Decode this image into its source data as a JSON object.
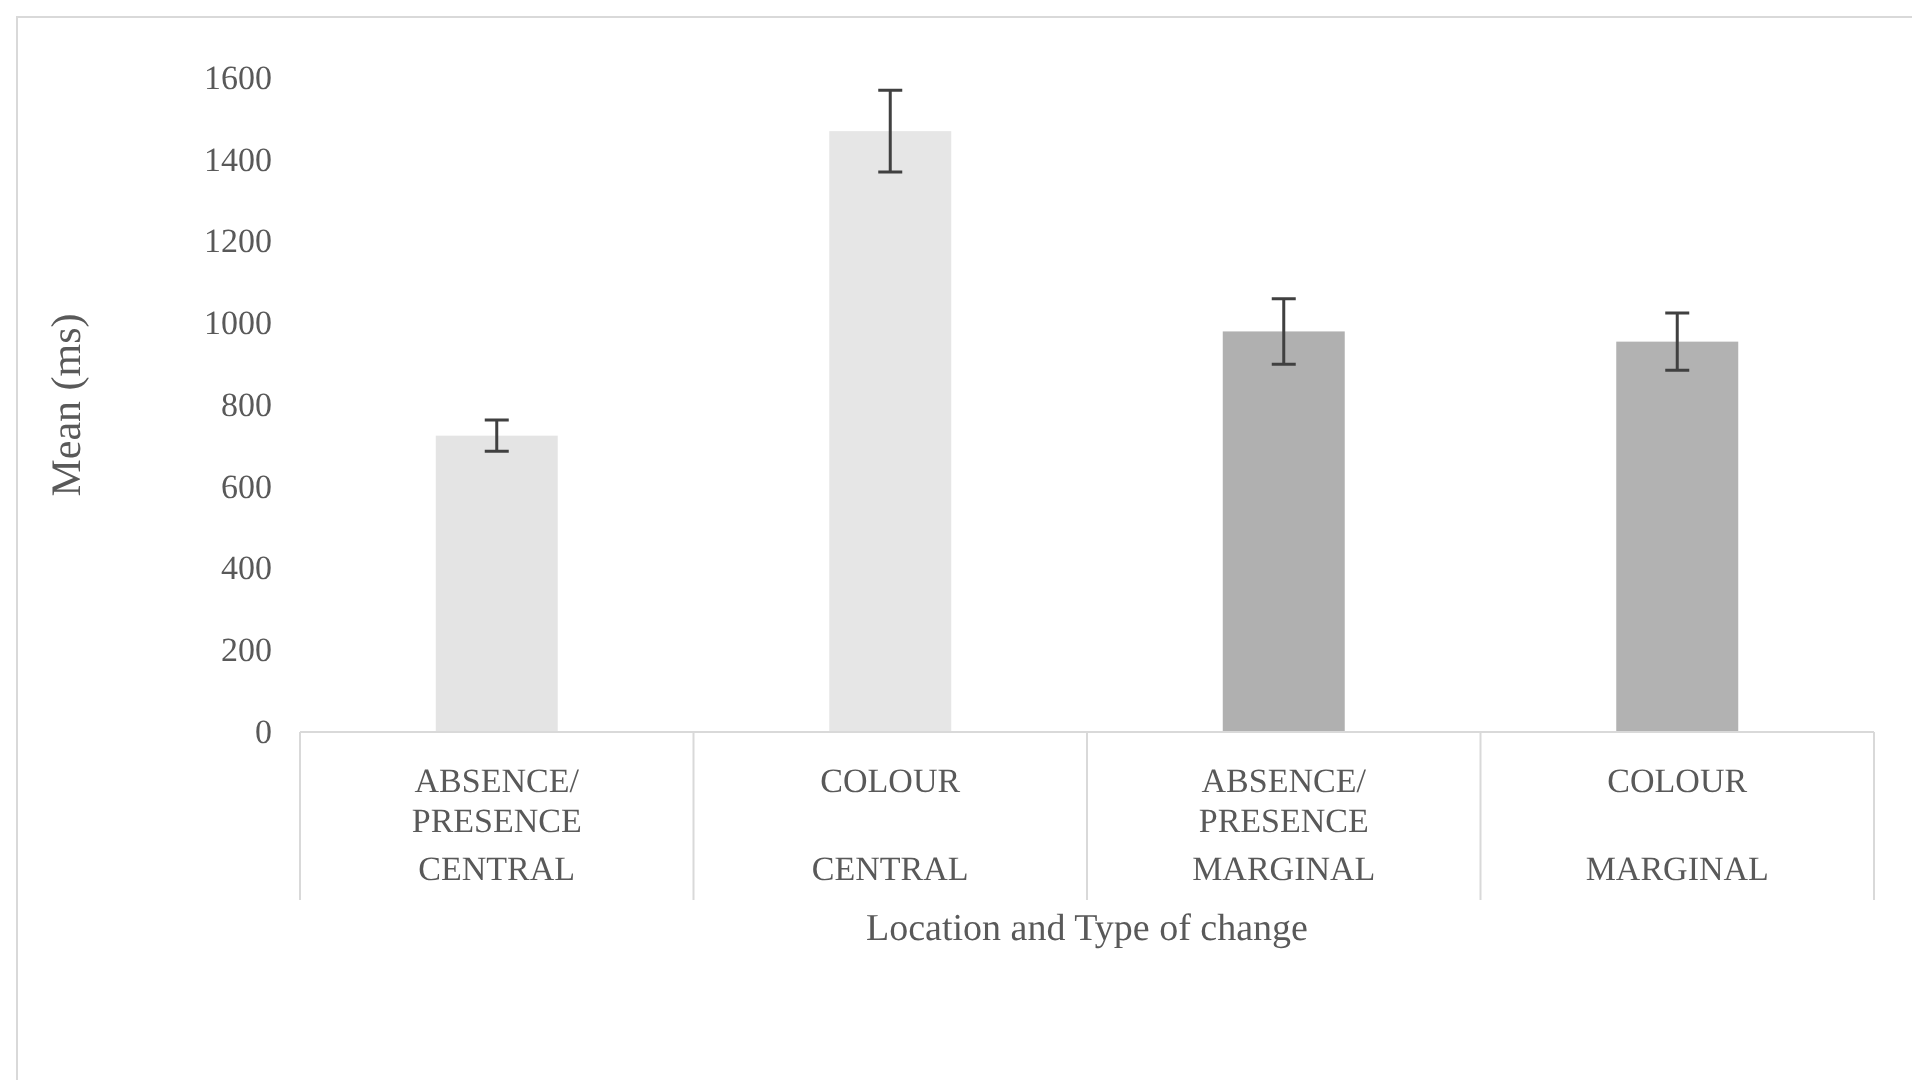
{
  "chart_data": {
    "type": "bar",
    "categories": [
      "ABSENCE/\nPRESENCE\nCENTRAL",
      "COLOUR\nCENTRAL",
      "ABSENCE/\nPRESENCE\nMARGINAL",
      "COLOUR\nMARGINAL"
    ],
    "values": [
      725,
      1470,
      980,
      955
    ],
    "errors": [
      38,
      100,
      80,
      70
    ],
    "colors": [
      "#e4e4e4",
      "#e6e6e6",
      "#b0b0b0",
      "#b2b2b2"
    ],
    "xlabel": "Location and Type of change",
    "ylabel": "Mean (ms)",
    "ylim": [
      0,
      1600
    ],
    "yticks": [
      0,
      200,
      400,
      600,
      800,
      1000,
      1200,
      1400,
      1600
    ],
    "grid": false
  }
}
